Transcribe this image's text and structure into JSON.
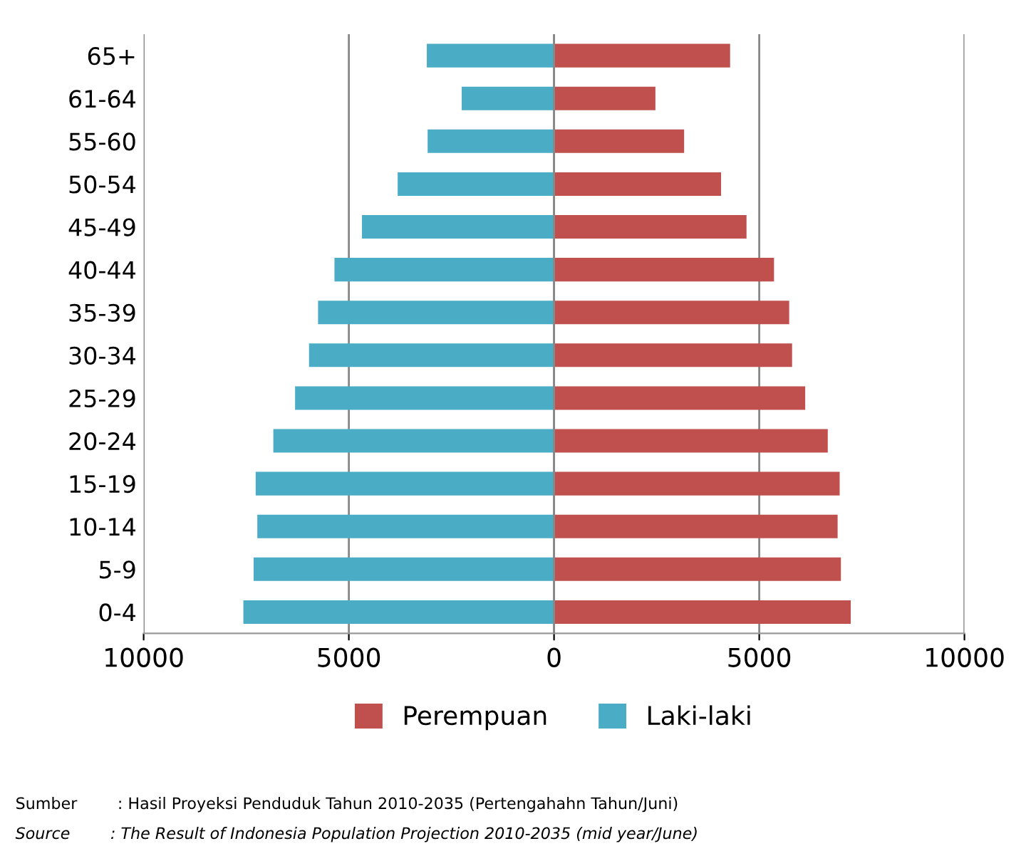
{
  "chart_data": {
    "type": "bar",
    "orientation": "horizontal",
    "stacked": true,
    "categories": [
      "65+",
      "61-64",
      "55-60",
      "50-54",
      "45-49",
      "40-44",
      "35-39",
      "30-34",
      "25-29",
      "20-24",
      "15-19",
      "10-14",
      "5-9",
      "0-4"
    ],
    "series": [
      {
        "name": "Perempuan",
        "color": "#c0504d",
        "values": [
          4290,
          2470,
          3170,
          4070,
          4690,
          5360,
          5730,
          5800,
          6120,
          6670,
          6960,
          6910,
          6990,
          7230
        ]
      },
      {
        "name": "Laki-laki",
        "color": "#4bacc6",
        "values": [
          -3100,
          -2250,
          -3080,
          -3810,
          -4680,
          -5350,
          -5750,
          -5970,
          -6310,
          -6840,
          -7270,
          -7230,
          -7320,
          -7570
        ]
      }
    ],
    "xlim": [
      -10000,
      10000
    ],
    "xticks": [
      {
        "value": -10000,
        "label": "10000"
      },
      {
        "value": -5000,
        "label": "5000"
      },
      0,
      5000,
      10000
    ],
    "grid": "x",
    "legend": "bottom",
    "annotations": [
      "Sumber        : Hasil Proyeksi Penduduk Tahun 2010-2035 (Pertengahahn Tahun/Juni)",
      "Source        : The Result of Indonesia Population Projection 2010-2035 (mid year/June)"
    ]
  }
}
